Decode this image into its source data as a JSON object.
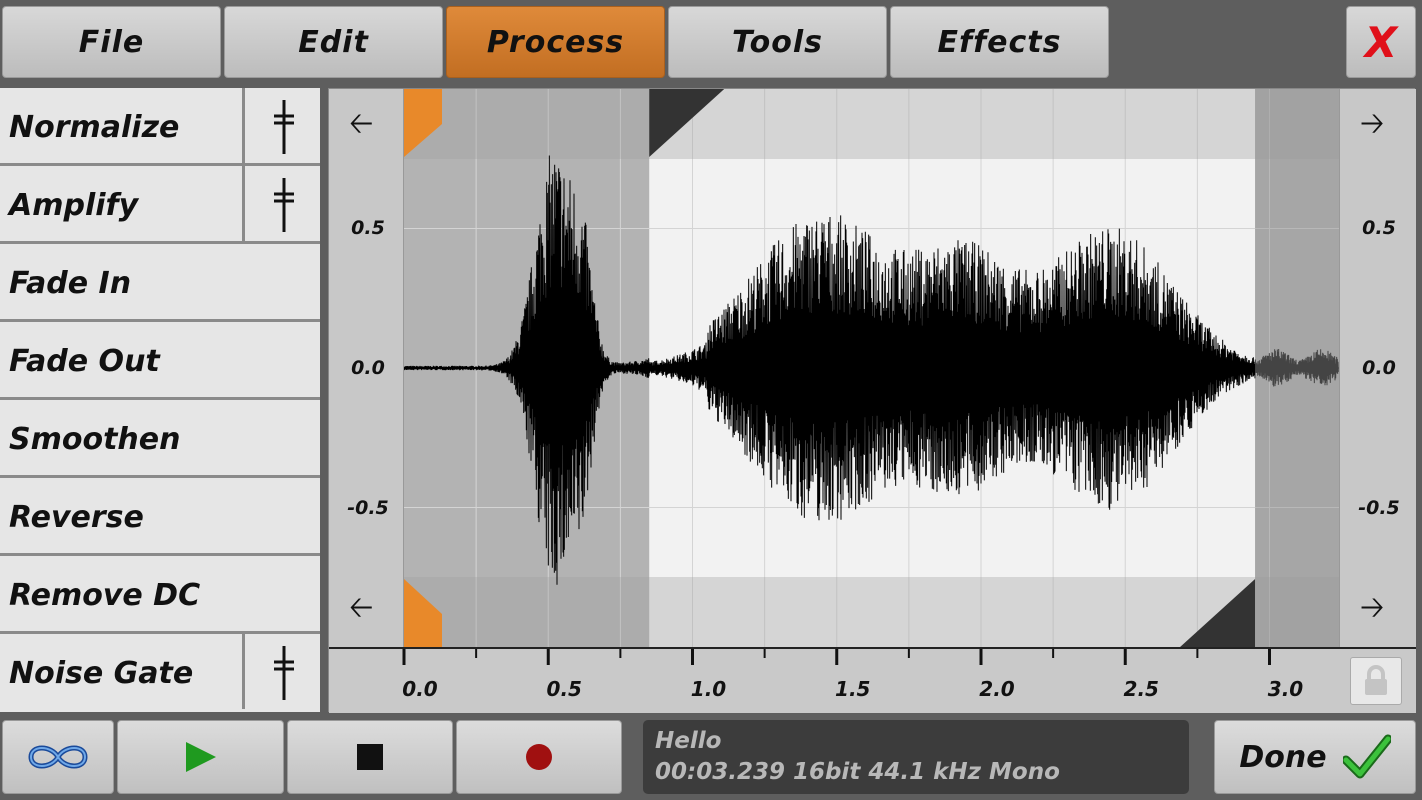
{
  "menu": {
    "items": [
      {
        "label": "File",
        "active": false
      },
      {
        "label": "Edit",
        "active": false
      },
      {
        "label": "Process",
        "active": true
      },
      {
        "label": "Tools",
        "active": false
      },
      {
        "label": "Effects",
        "active": false
      }
    ],
    "close_label": "X"
  },
  "process_list": [
    {
      "label": "Normalize",
      "has_slider": true
    },
    {
      "label": "Amplify",
      "has_slider": true
    },
    {
      "label": "Fade In",
      "has_slider": false
    },
    {
      "label": "Fade Out",
      "has_slider": false
    },
    {
      "label": "Smoothen",
      "has_slider": false
    },
    {
      "label": "Reverse",
      "has_slider": false
    },
    {
      "label": "Remove DC",
      "has_slider": false
    },
    {
      "label": "Noise Gate",
      "has_slider": true
    }
  ],
  "editor": {
    "amplitude_labels": [
      "0.5",
      "0.0",
      "-0.5"
    ],
    "time_labels": [
      "0.0",
      "0.5",
      "1.0",
      "1.5",
      "2.0",
      "2.5",
      "3.0"
    ],
    "selection_start_s": 0.85,
    "selection_end_s": 2.95,
    "view_end_s": 3.239,
    "colors": {
      "selection_bg": "#f2f2f2",
      "marker": "#e8892a",
      "unselected_bg": "#b3b3b3"
    }
  },
  "transport": {
    "loop_icon": "infinity-loop-icon",
    "play_icon": "play-icon",
    "stop_icon": "stop-icon",
    "record_icon": "record-icon"
  },
  "info": {
    "name": "Hello",
    "details": "00:03.239 16bit 44.1 kHz Mono"
  },
  "done_label": "Done"
}
